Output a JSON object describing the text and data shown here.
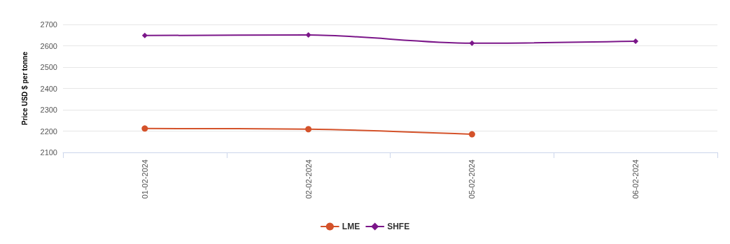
{
  "chart_data": {
    "type": "line",
    "ylabel": "Price USD $ per tonne",
    "categories": [
      "01-02-2024",
      "02-02-2024",
      "05-02-2024",
      "06-02-2024"
    ],
    "series": [
      {
        "name": "LME",
        "color": "#d4522a",
        "marker": "circle",
        "values": [
          2212,
          2209,
          2185,
          null
        ]
      },
      {
        "name": "SHFE",
        "color": "#7b1689",
        "marker": "diamond",
        "values": [
          2648,
          2651,
          2612,
          2621
        ]
      }
    ],
    "ylim": [
      2100,
      2700
    ],
    "yticks": [
      2100,
      2200,
      2300,
      2400,
      2500,
      2600,
      2700
    ],
    "grid": "y",
    "legend": "bottom"
  }
}
